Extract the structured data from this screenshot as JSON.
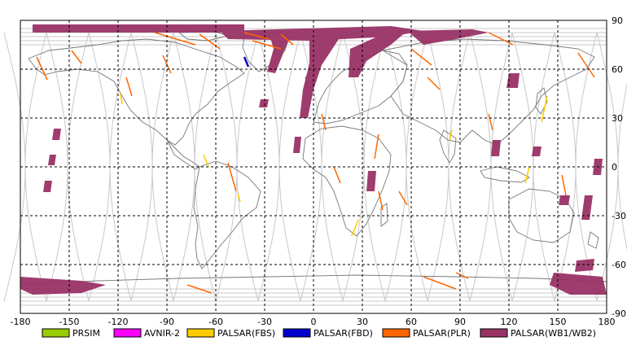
{
  "map": {
    "lon_ticks": [
      "-180",
      "-150",
      "-120",
      "-90",
      "-60",
      "-30",
      "0",
      "30",
      "60",
      "90",
      "120",
      "150",
      "180"
    ],
    "lat_ticks": [
      "90",
      "60",
      "30",
      "0",
      "-30",
      "-60",
      "-90"
    ],
    "lon_range": [
      -180,
      180
    ],
    "lat_range": [
      -90,
      90
    ],
    "grid": true
  },
  "legend": [
    {
      "label": "PRSIM",
      "color": "#99cc00"
    },
    {
      "label": "AVNIR-2",
      "color": "#ff00ff"
    },
    {
      "label": "PALSAR(FBS)",
      "color": "#ffcc00"
    },
    {
      "label": "PALSAR(FBD)",
      "color": "#0000cc"
    },
    {
      "label": "PALSAR(PLR)",
      "color": "#ff6600"
    },
    {
      "label": "PALSAR(WB1/WB2)",
      "color": "#993366"
    }
  ],
  "colors": {
    "land_outline": "#777777",
    "orbit_track": "#c8c8c8",
    "grid": "#000000"
  }
}
